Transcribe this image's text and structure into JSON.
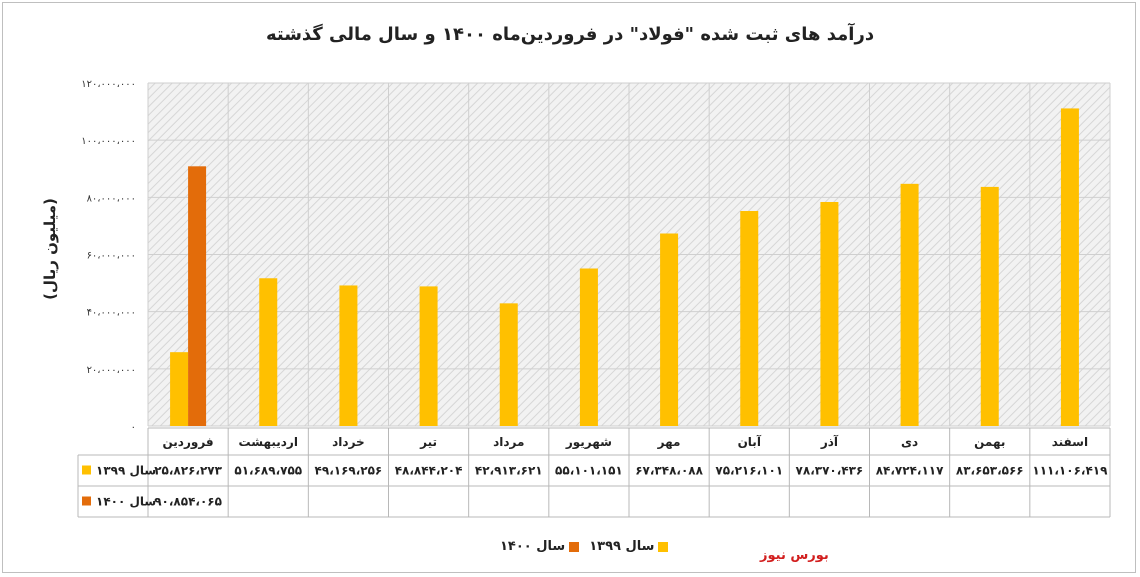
{
  "brand_colors": {
    "series_1399": "#ffc000",
    "series_1400": "#e36c0a",
    "watermark": "#d21e1e"
  },
  "watermark_text": "بورس نیوز",
  "chart_data": {
    "type": "bar",
    "title": "درآمد های ثبت شده \"فولاد\" در فروردین‌ماه ۱۴۰۰ و سال مالی گذشته",
    "ylabel": "(میلیون ریال)",
    "xlabel": "",
    "ylim": [
      0,
      120000000
    ],
    "yticks": [
      0,
      20000000,
      40000000,
      60000000,
      80000000,
      100000000,
      120000000
    ],
    "ytick_labels": [
      "۰",
      "۲۰،۰۰۰،۰۰۰",
      "۴۰،۰۰۰،۰۰۰",
      "۶۰،۰۰۰،۰۰۰",
      "۸۰،۰۰۰،۰۰۰",
      "۱۰۰،۰۰۰،۰۰۰",
      "۱۲۰،۰۰۰،۰۰۰"
    ],
    "grid": true,
    "legend_position": "bottom-center",
    "categories": [
      "فروردین",
      "اردیبهشت",
      "خرداد",
      "تیر",
      "مرداد",
      "شهریور",
      "مهر",
      "آبان",
      "آذر",
      "دی",
      "بهمن",
      "اسفند"
    ],
    "series": [
      {
        "name": "سال ۱۳۹۹",
        "color": "#ffc000",
        "values": [
          25826273,
          51689755,
          49169256,
          48844204,
          42913621,
          55101151,
          67348088,
          75216101,
          78370436,
          84724117,
          83653566,
          111106419
        ],
        "labels": [
          "۲۵،۸۲۶،۲۷۳",
          "۵۱،۶۸۹،۷۵۵",
          "۴۹،۱۶۹،۲۵۶",
          "۴۸،۸۴۴،۲۰۴",
          "۴۲،۹۱۳،۶۲۱",
          "۵۵،۱۰۱،۱۵۱",
          "۶۷،۳۴۸،۰۸۸",
          "۷۵،۲۱۶،۱۰۱",
          "۷۸،۳۷۰،۴۳۶",
          "۸۴،۷۲۴،۱۱۷",
          "۸۳،۶۵۳،۵۶۶",
          "۱۱۱،۱۰۶،۴۱۹"
        ]
      },
      {
        "name": "سال ۱۴۰۰",
        "color": "#e36c0a",
        "values": [
          90854065,
          null,
          null,
          null,
          null,
          null,
          null,
          null,
          null,
          null,
          null,
          null
        ],
        "labels": [
          "۹۰،۸۵۴،۰۶۵",
          "",
          "",
          "",
          "",
          "",
          "",
          "",
          "",
          "",
          "",
          ""
        ]
      }
    ]
  }
}
